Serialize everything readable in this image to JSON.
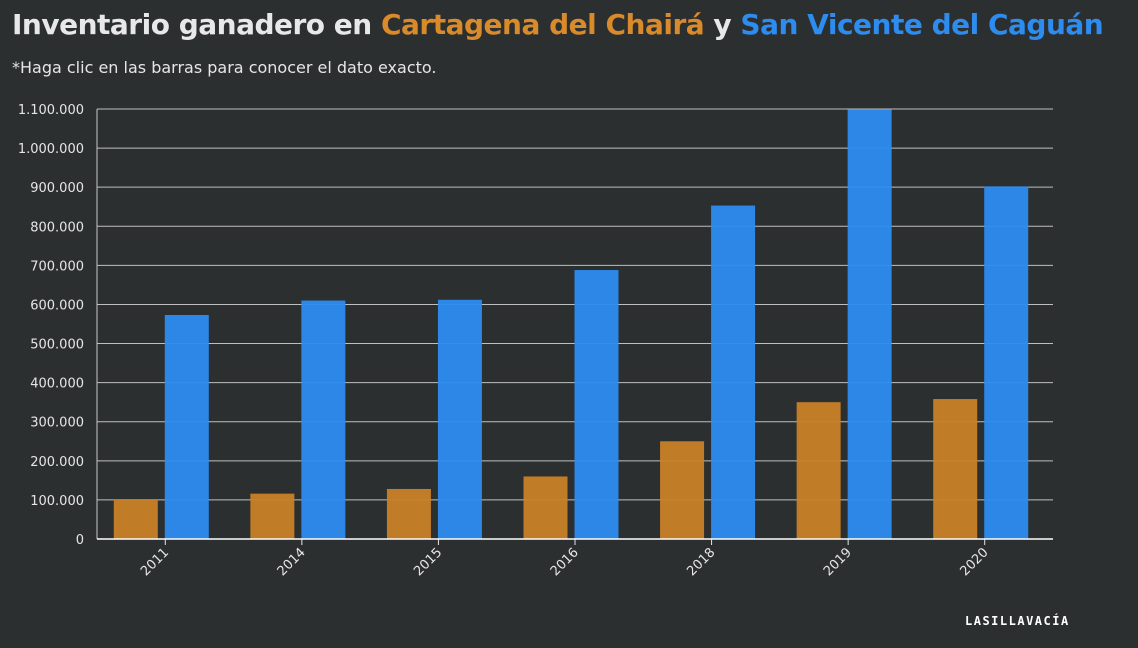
{
  "title": {
    "prefix": "Inventario ganadero en ",
    "series1": "Cartagena del Chairá",
    "connector": " y ",
    "series2": "San Vicente del Caguán"
  },
  "subtitle": "*Haga clic en las barras para conocer el dato exacto.",
  "logo": "LASILLAVACÍA",
  "colors": {
    "background": "#2c2f30",
    "series1": "#c98128",
    "series2": "#2d8cf0",
    "grid": "#d8d8d8"
  },
  "chart_data": {
    "type": "bar",
    "categories": [
      "2011",
      "2014",
      "2015",
      "2016",
      "2018",
      "2019",
      "2020"
    ],
    "series": [
      {
        "name": "Cartagena del Chairá",
        "color": "#c98128",
        "values": [
          100000,
          116000,
          128000,
          160000,
          250000,
          350000,
          358000
        ]
      },
      {
        "name": "San Vicente del Caguán",
        "color": "#2d8cf0",
        "values": [
          573000,
          610000,
          612000,
          688000,
          853000,
          1099000,
          902000
        ]
      }
    ],
    "y_ticks": [
      "0",
      "100.000",
      "200.000",
      "300.000",
      "400.000",
      "500.000",
      "600.000",
      "700.000",
      "800.000",
      "900.000",
      "1.000.000",
      "1.100.000"
    ],
    "ylim": [
      0,
      1100000
    ],
    "grid": true,
    "legend": "none"
  }
}
